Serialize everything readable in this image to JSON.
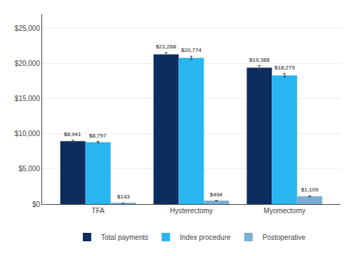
{
  "chart_data": {
    "type": "bar",
    "categories": [
      "TFA",
      "Hysterectomy",
      "Myomectomy"
    ],
    "series": [
      {
        "name": "Total payments",
        "color": "#0d2d5e",
        "values": [
          8941,
          21268,
          19388
        ],
        "errors": [
          130,
          260,
          280
        ],
        "value_labels": [
          "$8,941",
          "$21,268",
          "$19,388"
        ]
      },
      {
        "name": "Index procedure",
        "color": "#29b6f0",
        "values": [
          8797,
          20774,
          18279
        ],
        "errors": [
          110,
          240,
          260
        ],
        "value_labels": [
          "$8,797",
          "$20,774",
          "$18,279"
        ]
      },
      {
        "name": "Postoperative",
        "color": "#7bafd4",
        "values": [
          143,
          494,
          1109
        ],
        "errors": [
          8,
          20,
          40
        ],
        "value_labels": [
          "$143",
          "$494",
          "$1,109"
        ]
      }
    ],
    "ylim": [
      0,
      27000
    ],
    "yticks": [
      {
        "value": 0,
        "label": "$0"
      },
      {
        "value": 5000,
        "label": "$5,000"
      },
      {
        "value": 10000,
        "label": "$10,000"
      },
      {
        "value": 15000,
        "label": "$15,000"
      },
      {
        "value": 20000,
        "label": "$20,000"
      },
      {
        "value": 25000,
        "label": "$25,000"
      }
    ],
    "grid": true,
    "legend": "bottom",
    "data_labels": true
  }
}
